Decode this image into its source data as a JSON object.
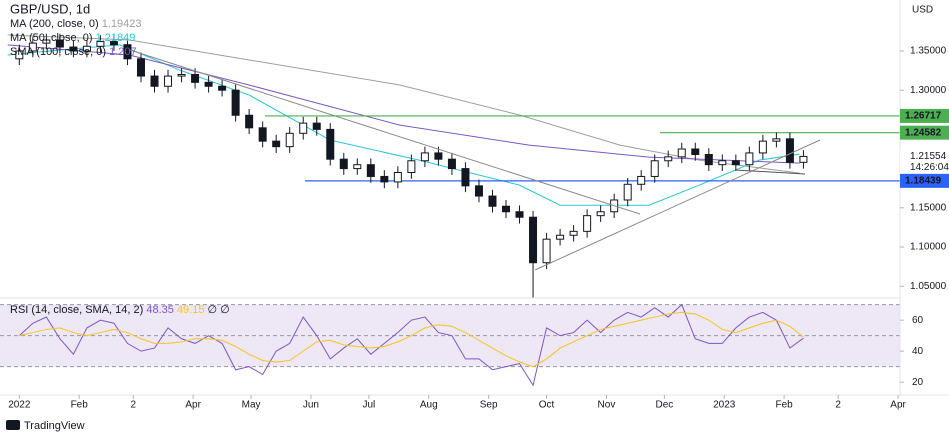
{
  "branding": "TradingView",
  "chart_data": [
    {
      "type": "candlestick",
      "title": "GBP/USD, 1d",
      "y_axis_label": "USD",
      "countdown": "14:26:04",
      "up_color": "#ffffff",
      "down_color": "#131722",
      "xlim": [
        -10,
        456
      ],
      "xticks": [
        {
          "value": 0,
          "label": "2022"
        },
        {
          "value": 31,
          "label": "Feb"
        },
        {
          "value": 59,
          "label": "2"
        },
        {
          "value": 90,
          "label": "Apr"
        },
        {
          "value": 120,
          "label": "May"
        },
        {
          "value": 151,
          "label": "Jun"
        },
        {
          "value": 181,
          "label": "Jul"
        },
        {
          "value": 212,
          "label": "Aug"
        },
        {
          "value": 243,
          "label": "Sep"
        },
        {
          "value": 273,
          "label": "Oct"
        },
        {
          "value": 304,
          "label": "Nov"
        },
        {
          "value": 334,
          "label": "Dec"
        },
        {
          "value": 365,
          "label": "2023"
        },
        {
          "value": 396,
          "label": "Feb"
        },
        {
          "value": 424,
          "label": "2"
        },
        {
          "value": 455,
          "label": "Apr"
        }
      ],
      "ylim": [
        1.035,
        1.415
      ],
      "yticks": [
        {
          "value": 1.35,
          "label": "1.35000"
        },
        {
          "value": 1.3,
          "label": "1.30000"
        },
        {
          "value": 1.15,
          "label": "1.15000"
        },
        {
          "value": 1.1,
          "label": "1.10000"
        },
        {
          "value": 1.05,
          "label": "1.05000"
        }
      ],
      "x": [
        0,
        7,
        14,
        21,
        28,
        35,
        42,
        49,
        56,
        63,
        70,
        77,
        84,
        91,
        98,
        105,
        112,
        119,
        126,
        133,
        140,
        147,
        154,
        161,
        168,
        175,
        182,
        189,
        196,
        203,
        210,
        217,
        224,
        231,
        238,
        245,
        252,
        259,
        266,
        273,
        280,
        287,
        294,
        301,
        308,
        315,
        322,
        329,
        336,
        343,
        350,
        357,
        364,
        371,
        378,
        385,
        392,
        399,
        406
      ],
      "open": [
        1.34,
        1.35,
        1.36,
        1.364,
        1.355,
        1.35,
        1.356,
        1.362,
        1.358,
        1.34,
        1.318,
        1.305,
        1.318,
        1.32,
        1.31,
        1.305,
        1.3,
        1.268,
        1.252,
        1.235,
        1.228,
        1.245,
        1.258,
        1.25,
        1.212,
        1.2,
        1.205,
        1.19,
        1.183,
        1.195,
        1.21,
        1.22,
        1.212,
        1.2,
        1.178,
        1.165,
        1.152,
        1.145,
        1.138,
        1.08,
        1.11,
        1.115,
        1.12,
        1.14,
        1.145,
        1.16,
        1.18,
        1.19,
        1.21,
        1.215,
        1.225,
        1.218,
        1.205,
        1.21,
        1.205,
        1.22,
        1.235,
        1.238,
        1.208
      ],
      "high": [
        1.358,
        1.368,
        1.372,
        1.372,
        1.363,
        1.364,
        1.37,
        1.37,
        1.366,
        1.348,
        1.326,
        1.326,
        1.328,
        1.328,
        1.318,
        1.313,
        1.308,
        1.276,
        1.26,
        1.243,
        1.253,
        1.266,
        1.266,
        1.258,
        1.22,
        1.213,
        1.213,
        1.198,
        1.203,
        1.218,
        1.228,
        1.228,
        1.22,
        1.208,
        1.186,
        1.173,
        1.16,
        1.153,
        1.146,
        1.118,
        1.123,
        1.128,
        1.148,
        1.153,
        1.168,
        1.188,
        1.198,
        1.218,
        1.223,
        1.233,
        1.233,
        1.226,
        1.218,
        1.218,
        1.228,
        1.243,
        1.246,
        1.246,
        1.2235
      ],
      "low": [
        1.332,
        1.342,
        1.352,
        1.347,
        1.342,
        1.342,
        1.348,
        1.35,
        1.332,
        1.31,
        1.297,
        1.297,
        1.31,
        1.302,
        1.297,
        1.292,
        1.26,
        1.244,
        1.227,
        1.22,
        1.22,
        1.237,
        1.242,
        1.204,
        1.192,
        1.192,
        1.182,
        1.175,
        1.175,
        1.187,
        1.202,
        1.204,
        1.192,
        1.17,
        1.157,
        1.144,
        1.137,
        1.13,
        1.035,
        1.072,
        1.102,
        1.107,
        1.112,
        1.132,
        1.137,
        1.152,
        1.172,
        1.182,
        1.202,
        1.207,
        1.21,
        1.197,
        1.197,
        1.197,
        1.197,
        1.212,
        1.227,
        1.2,
        1.2
      ],
      "close": [
        1.35,
        1.36,
        1.364,
        1.355,
        1.35,
        1.356,
        1.362,
        1.358,
        1.34,
        1.318,
        1.305,
        1.318,
        1.32,
        1.31,
        1.305,
        1.3,
        1.268,
        1.252,
        1.235,
        1.228,
        1.245,
        1.258,
        1.25,
        1.212,
        1.2,
        1.205,
        1.19,
        1.183,
        1.195,
        1.21,
        1.22,
        1.212,
        1.2,
        1.178,
        1.165,
        1.152,
        1.145,
        1.138,
        1.08,
        1.11,
        1.115,
        1.12,
        1.14,
        1.145,
        1.16,
        1.18,
        1.19,
        1.21,
        1.215,
        1.225,
        1.218,
        1.205,
        1.21,
        1.205,
        1.22,
        1.235,
        1.238,
        1.208,
        1.21554
      ],
      "series": [
        {
          "name": "MA (200, close, 0)",
          "color": "#9e9e9e",
          "x": [
            -6,
            57,
            119,
            197,
            259,
            311,
            352,
            404
          ],
          "values": [
            1.3704,
            1.364,
            1.3385,
            1.3066,
            1.2683,
            1.2299,
            1.2108,
            1.19423
          ]
        },
        {
          "name": "MA (50, close, 0)",
          "color": "#26c6da",
          "x": [
            -6,
            21,
            52,
            83,
            119,
            161,
            207,
            259,
            280,
            326,
            352,
            383,
            404
          ],
          "values": [
            1.3449,
            1.3513,
            1.3577,
            1.3257,
            1.2938,
            1.2363,
            1.2108,
            1.1789,
            1.1533,
            1.1533,
            1.1789,
            1.2108,
            1.21849
          ]
        },
        {
          "name": "SMA (100, close, 0)",
          "color": "#7e57c2",
          "x": [
            -6,
            57,
            119,
            197,
            264,
            326,
            404
          ],
          "values": [
            1.3577,
            1.3449,
            1.3066,
            1.2555,
            1.2299,
            1.2146,
            1.207
          ]
        }
      ],
      "levels": [
        {
          "value": 1.26717,
          "color": "#4caf50",
          "text_color": "#131722"
        },
        {
          "value": 1.24582,
          "color": "#4caf50",
          "text_color": "#131722"
        },
        {
          "value": 1.18439,
          "color": "#2962ff",
          "text_color": "#ffffff"
        }
      ]
    },
    {
      "type": "rsi",
      "legend_extra": "∅  ∅",
      "band": [
        30,
        70
      ],
      "band_color": "#ede7f6",
      "levels": [
        70,
        50,
        30
      ],
      "ylim": [
        13,
        73
      ],
      "yticks": [
        20,
        40,
        60
      ],
      "series": [
        {
          "name": "RSI (14, close, SMA, 14, 2)",
          "color": "#7e57c2",
          "values": [
            50,
            58,
            62,
            48,
            38,
            55,
            60,
            58,
            45,
            40,
            42,
            55,
            48,
            45,
            50,
            45,
            28,
            30,
            25,
            40,
            45,
            62,
            50,
            35,
            42,
            48,
            38,
            45,
            52,
            60,
            62,
            52,
            50,
            35,
            35,
            28,
            30,
            32,
            18,
            55,
            50,
            52,
            60,
            52,
            60,
            65,
            62,
            68,
            62,
            70,
            48,
            45,
            45,
            55,
            62,
            65,
            60,
            42,
            48.35
          ]
        },
        {
          "name": "RSI-based MA",
          "color": "#f7c51f",
          "values": [
            50,
            52,
            54,
            55,
            52,
            50,
            52,
            54,
            52,
            48,
            45,
            45,
            46,
            48,
            48,
            47,
            43,
            38,
            34,
            33,
            34,
            40,
            46,
            47,
            44,
            43,
            42,
            43,
            46,
            50,
            55,
            57,
            56,
            52,
            47,
            42,
            37,
            33,
            30,
            35,
            42,
            46,
            50,
            54,
            56,
            58,
            60,
            62,
            64,
            65,
            64,
            60,
            54,
            52,
            55,
            58,
            60,
            56,
            49.15
          ]
        }
      ]
    }
  ]
}
